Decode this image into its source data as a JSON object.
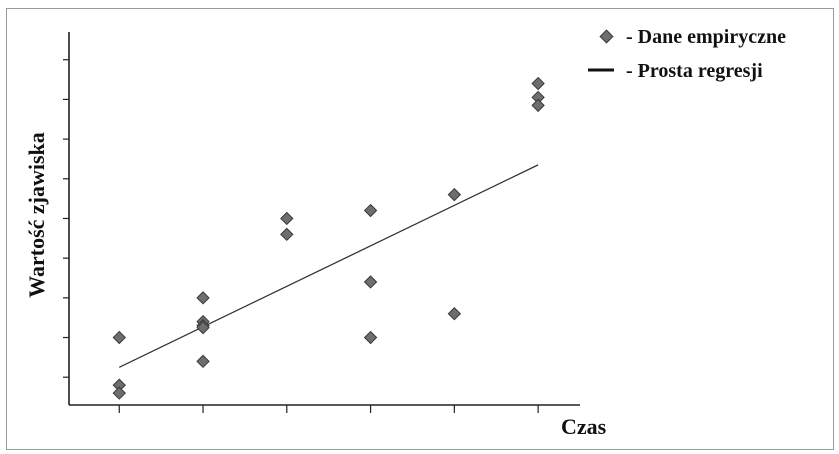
{
  "chart_data": {
    "type": "scatter",
    "xlabel": "Czas",
    "ylabel": "Wartość zjawiska",
    "xlim": [
      0.4,
      6.5
    ],
    "ylim": [
      0.3,
      9.9
    ],
    "x_ticks": [
      1,
      2,
      3,
      4,
      5,
      6
    ],
    "y_ticks": [
      1,
      2,
      3,
      4,
      5,
      6,
      7,
      8,
      9
    ],
    "grid": false,
    "legend_position": "top-right",
    "legend": [
      {
        "label": "- Dane empiryczne",
        "marker": "diamond"
      },
      {
        "label": "- Prosta regresji",
        "marker": "line"
      }
    ],
    "series": [
      {
        "kind": "points",
        "points": [
          [
            1,
            2.0
          ],
          [
            1,
            0.8
          ],
          [
            1,
            0.6
          ],
          [
            2,
            3.0
          ],
          [
            2,
            2.4
          ],
          [
            2,
            2.3
          ],
          [
            2,
            2.25
          ],
          [
            2,
            1.4
          ],
          [
            3,
            5.0
          ],
          [
            3,
            4.6
          ],
          [
            4,
            5.2
          ],
          [
            4,
            3.4
          ],
          [
            4,
            2.0
          ],
          [
            5,
            5.6
          ],
          [
            5,
            2.6
          ],
          [
            6,
            8.4
          ],
          [
            6,
            8.05
          ],
          [
            6,
            7.85
          ]
        ]
      },
      {
        "kind": "line",
        "points": [
          [
            1,
            1.25
          ],
          [
            6,
            6.35
          ]
        ]
      }
    ]
  },
  "colors": {
    "marker_fill": "#6e6e6e",
    "marker_stroke": "#3a3a3a",
    "line": "#333333",
    "frame": "#9a9a9a"
  }
}
